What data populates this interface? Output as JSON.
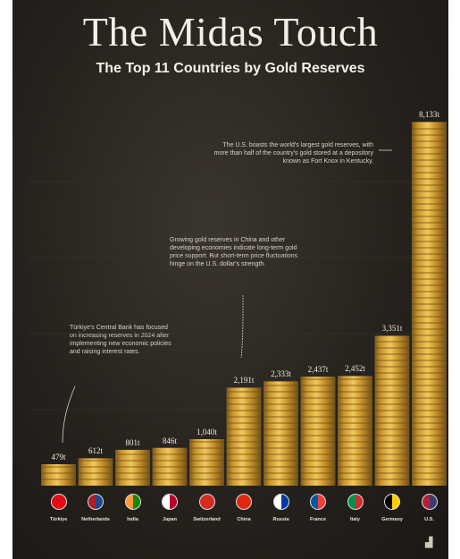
{
  "chart_data": {
    "type": "bar",
    "title": "The Midas Touch",
    "subtitle": "The Top 11 Countries by Gold Reserves",
    "top_note": "",
    "categories": [
      "Türkiye",
      "Netherlands",
      "India",
      "Japan",
      "Switzerland",
      "China",
      "Russia",
      "France",
      "Italy",
      "Germany",
      "U.S."
    ],
    "values": [
      479,
      612,
      801,
      846,
      1040,
      2191,
      2333,
      2437,
      2452,
      3351,
      8133
    ],
    "value_labels": [
      "479t",
      "612t",
      "801t",
      "846t",
      "1,040t",
      "2,191t",
      "2,333t",
      "2,437t",
      "2,452t",
      "3,351t",
      "8,133t"
    ],
    "ylim": [
      0,
      8500
    ],
    "flag_colors": [
      [
        "#e30a17",
        "#e30a17"
      ],
      [
        "#ae1c28",
        "#21468b"
      ],
      [
        "#ff9933",
        "#138808"
      ],
      [
        "#ffffff",
        "#bc002d"
      ],
      [
        "#d52b1e",
        "#d52b1e"
      ],
      [
        "#de2910",
        "#de2910"
      ],
      [
        "#ffffff",
        "#0039a6"
      ],
      [
        "#0055a4",
        "#ef4135"
      ],
      [
        "#009246",
        "#ce2b37"
      ],
      [
        "#000000",
        "#ffce00"
      ],
      [
        "#b22234",
        "#3c3b6e"
      ]
    ],
    "annotations": [
      {
        "text": "The U.S. boasts the world's largest gold reserves, with more than half of the country's gold stored at a depository known as Fort Knox in Kentucky."
      },
      {
        "text": "Growing gold reserves in China and other developing economies indicate long-term gold price support. But short-term price fluctuations hinge on the U.S. dollar's strength.",
        "source": ""
      },
      {
        "text": "Türkiye's Central Bank has focused on increasing reserves in 2024 after implementing new economic policies and raising interest rates.",
        "source": ""
      }
    ],
    "footer": "",
    "colors": {
      "gold": "#e0b040",
      "background": "#26221e",
      "text": "#f4efe6"
    }
  }
}
